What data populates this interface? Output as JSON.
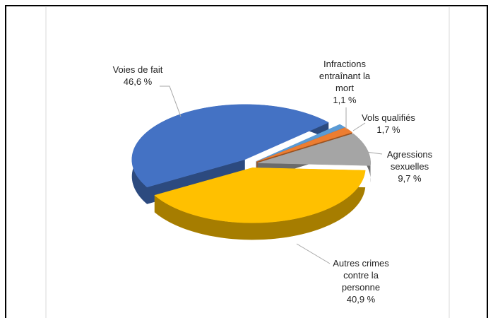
{
  "chart_data": {
    "type": "pie3d",
    "categories": [
      "Voies de fait",
      "Infractions entraînant la mort",
      "Vols qualifiés",
      "Agressions sexuelles",
      "Autres crimes contre la personne"
    ],
    "values": [
      46.6,
      1.1,
      1.7,
      9.7,
      40.9
    ],
    "value_labels": [
      "46,6 %",
      "1,1 %",
      "1,7 %",
      "9,7 %",
      "40,9 %"
    ],
    "colors": [
      "#4472c4",
      "#5b9bd5",
      "#ed7d31",
      "#a5a5a5",
      "#ffc000"
    ]
  }
}
